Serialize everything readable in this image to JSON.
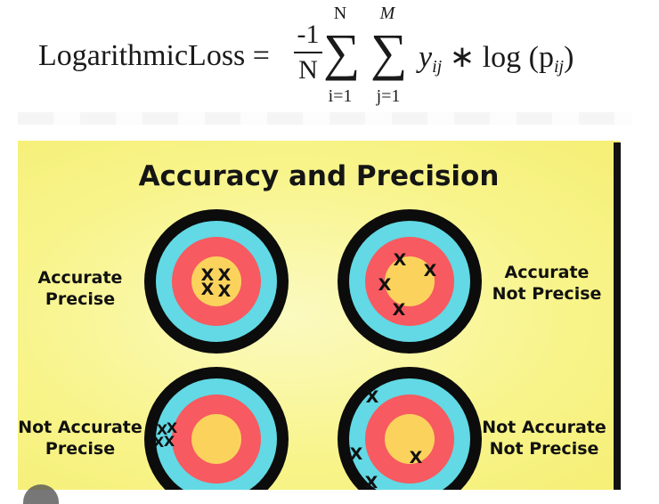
{
  "formula": {
    "lhs": "LogarithmicLoss =",
    "numerator": "-1",
    "denominator": "N",
    "sum1_upper": "N",
    "sum1_lower": "i=1",
    "sum2_upper": "M",
    "sum2_lower": "j=1",
    "rhs_y": "y",
    "rhs_y_sub": "ij",
    "rhs_op": " ∗ log (p",
    "rhs_p_sub": "ij",
    "rhs_close": ")"
  },
  "infographic": {
    "title": "Accuracy and Precision",
    "colors": {
      "outer_ring": "#0c0c0c",
      "cyan_ring": "#62d9e4",
      "red_ring": "#f75a60",
      "bullseye": "#fbd35c",
      "marker": "#111111"
    },
    "targets": [
      {
        "id": "accurate-precise",
        "line1": "Accurate",
        "line2": "Precise",
        "marker": "X"
      },
      {
        "id": "accurate-not-precise",
        "line1": "Accurate",
        "line2": "Not Precise",
        "marker": "X"
      },
      {
        "id": "not-accurate-precise",
        "line1": "Not Accurate",
        "line2": "Precise",
        "marker": "X"
      },
      {
        "id": "not-accurate-not-precise",
        "line1": "Not Accurate",
        "line2": "Not Precise",
        "marker": "X"
      }
    ]
  }
}
